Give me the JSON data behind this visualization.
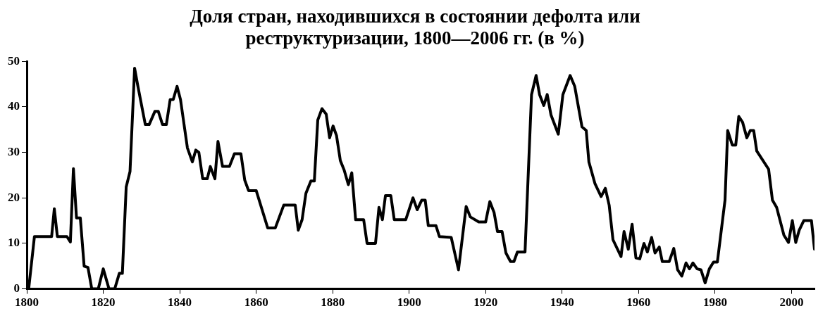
{
  "chart_data": {
    "type": "line",
    "title": "Доля стран, находившихся в состоянии дефолта или реструктуризации, 1800—2006 гг. (в %)",
    "x": [
      1800.5,
      1802,
      1806.5,
      1807.2,
      1808,
      1810.5,
      1811.4,
      1812.2,
      1813,
      1814,
      1815,
      1816,
      1817,
      1818.7,
      1820,
      1821.5,
      1823,
      1824.2,
      1825,
      1826,
      1827,
      1828.2,
      1829,
      1831,
      1832,
      1833.5,
      1834.4,
      1835.5,
      1836.5,
      1837.5,
      1838.3,
      1839.3,
      1840.2,
      1842,
      1843.3,
      1844.2,
      1845,
      1846,
      1847.2,
      1848,
      1849.2,
      1850,
      1851.2,
      1853,
      1854.3,
      1856,
      1857,
      1858,
      1860,
      1863,
      1865,
      1867.2,
      1870.2,
      1871,
      1872,
      1873,
      1874.3,
      1875.2,
      1876.1,
      1877.2,
      1878.3,
      1879.2,
      1880.1,
      1881,
      1882,
      1883,
      1884.1,
      1885,
      1886,
      1888.1,
      1889,
      1891.2,
      1892.1,
      1893,
      1893.8,
      1895.2,
      1896.1,
      1899.1,
      1901,
      1902.1,
      1903.3,
      1904.2,
      1905,
      1907,
      1907.9,
      1911,
      1912.9,
      1914.9,
      1916,
      1918.2,
      1920,
      1921.1,
      1922.2,
      1923.1,
      1924.3,
      1925.3,
      1926.5,
      1927.4,
      1928.3,
      1930.3,
      1932,
      1933.2,
      1934.1,
      1935.2,
      1936.1,
      1937.1,
      1939,
      1940.2,
      1942.1,
      1943.3,
      1945.2,
      1946.3,
      1947,
      1948.6,
      1950.2,
      1951.3,
      1952.3,
      1953.3,
      1955.4,
      1956.2,
      1957.3,
      1958.3,
      1959.3,
      1960.3,
      1961.4,
      1962.3,
      1963.4,
      1964.3,
      1965.4,
      1966.2,
      1968,
      1969.2,
      1970.2,
      1971.3,
      1972.4,
      1973.3,
      1974.2,
      1975.3,
      1976.3,
      1977.4,
      1978.5,
      1979.6,
      1980.6,
      1982.6,
      1983.3,
      1984.5,
      1985.4,
      1986.2,
      1987.2,
      1988.3,
      1989.2,
      1990.1,
      1990.9,
      1994,
      1995,
      1996.1,
      1998,
      1999.2,
      2000.2,
      2001.1,
      2002,
      2003.2,
      2005.2,
      2006
    ],
    "series": [
      {
        "color": "#000000",
        "values": [
          0,
          11.5,
          11.5,
          17.6,
          11.5,
          11.5,
          10.3,
          26.4,
          15.6,
          15.6,
          5,
          4.7,
          0,
          0,
          4.4,
          0,
          0,
          3.4,
          3.4,
          22.4,
          25.8,
          48.5,
          44.8,
          36.1,
          36.1,
          39,
          39,
          36.1,
          36.1,
          41.6,
          41.6,
          44.5,
          41.6,
          31,
          27.9,
          30.5,
          30,
          24.2,
          24.2,
          26.9,
          24.2,
          32.4,
          26.9,
          26.9,
          29.7,
          29.7,
          23.9,
          21.6,
          21.6,
          13.4,
          13.4,
          18.4,
          18.4,
          12.9,
          15.2,
          21,
          23.7,
          23.7,
          37.1,
          39.6,
          38.4,
          33.2,
          35.8,
          33.7,
          28.2,
          26.1,
          22.9,
          25.5,
          15.2,
          15.2,
          10,
          10,
          17.9,
          15.2,
          20.5,
          20.5,
          15.2,
          15.2,
          20,
          17.4,
          19.5,
          19.5,
          13.9,
          13.9,
          11.5,
          11.3,
          4.2,
          18.1,
          15.8,
          14.7,
          14.7,
          19.2,
          16.8,
          12.6,
          12.6,
          7.9,
          6,
          6,
          8.1,
          8.1,
          42.7,
          46.9,
          42.7,
          40.3,
          42.7,
          38.2,
          34,
          42.7,
          46.9,
          44.5,
          35.6,
          34.8,
          27.9,
          23.1,
          20.3,
          22.1,
          18.4,
          10.8,
          7.1,
          12.6,
          8.7,
          14.2,
          6.8,
          6.6,
          10,
          8.1,
          11.3,
          7.9,
          9.2,
          6,
          6,
          8.9,
          4.2,
          2.8,
          5.7,
          4.4,
          5.7,
          4.4,
          4.2,
          1.3,
          4.4,
          5.9,
          5.9,
          19.5,
          34.8,
          31.6,
          31.6,
          37.9,
          36.6,
          33.2,
          34.8,
          34.8,
          30.3,
          26.3,
          19.5,
          17.9,
          11.8,
          10.2,
          15,
          10.2,
          12.9,
          15,
          15,
          8.7
        ]
      }
    ],
    "xlim": [
      1800,
      2006
    ],
    "xticks": [
      1800,
      1820,
      1840,
      1860,
      1880,
      1900,
      1920,
      1940,
      1960,
      1980,
      2000
    ],
    "ylim": [
      0,
      50
    ],
    "yticks": [
      0,
      10,
      20,
      30,
      40,
      50
    ],
    "grid": false,
    "legend": false,
    "marker": "none",
    "line_style": "solid"
  }
}
